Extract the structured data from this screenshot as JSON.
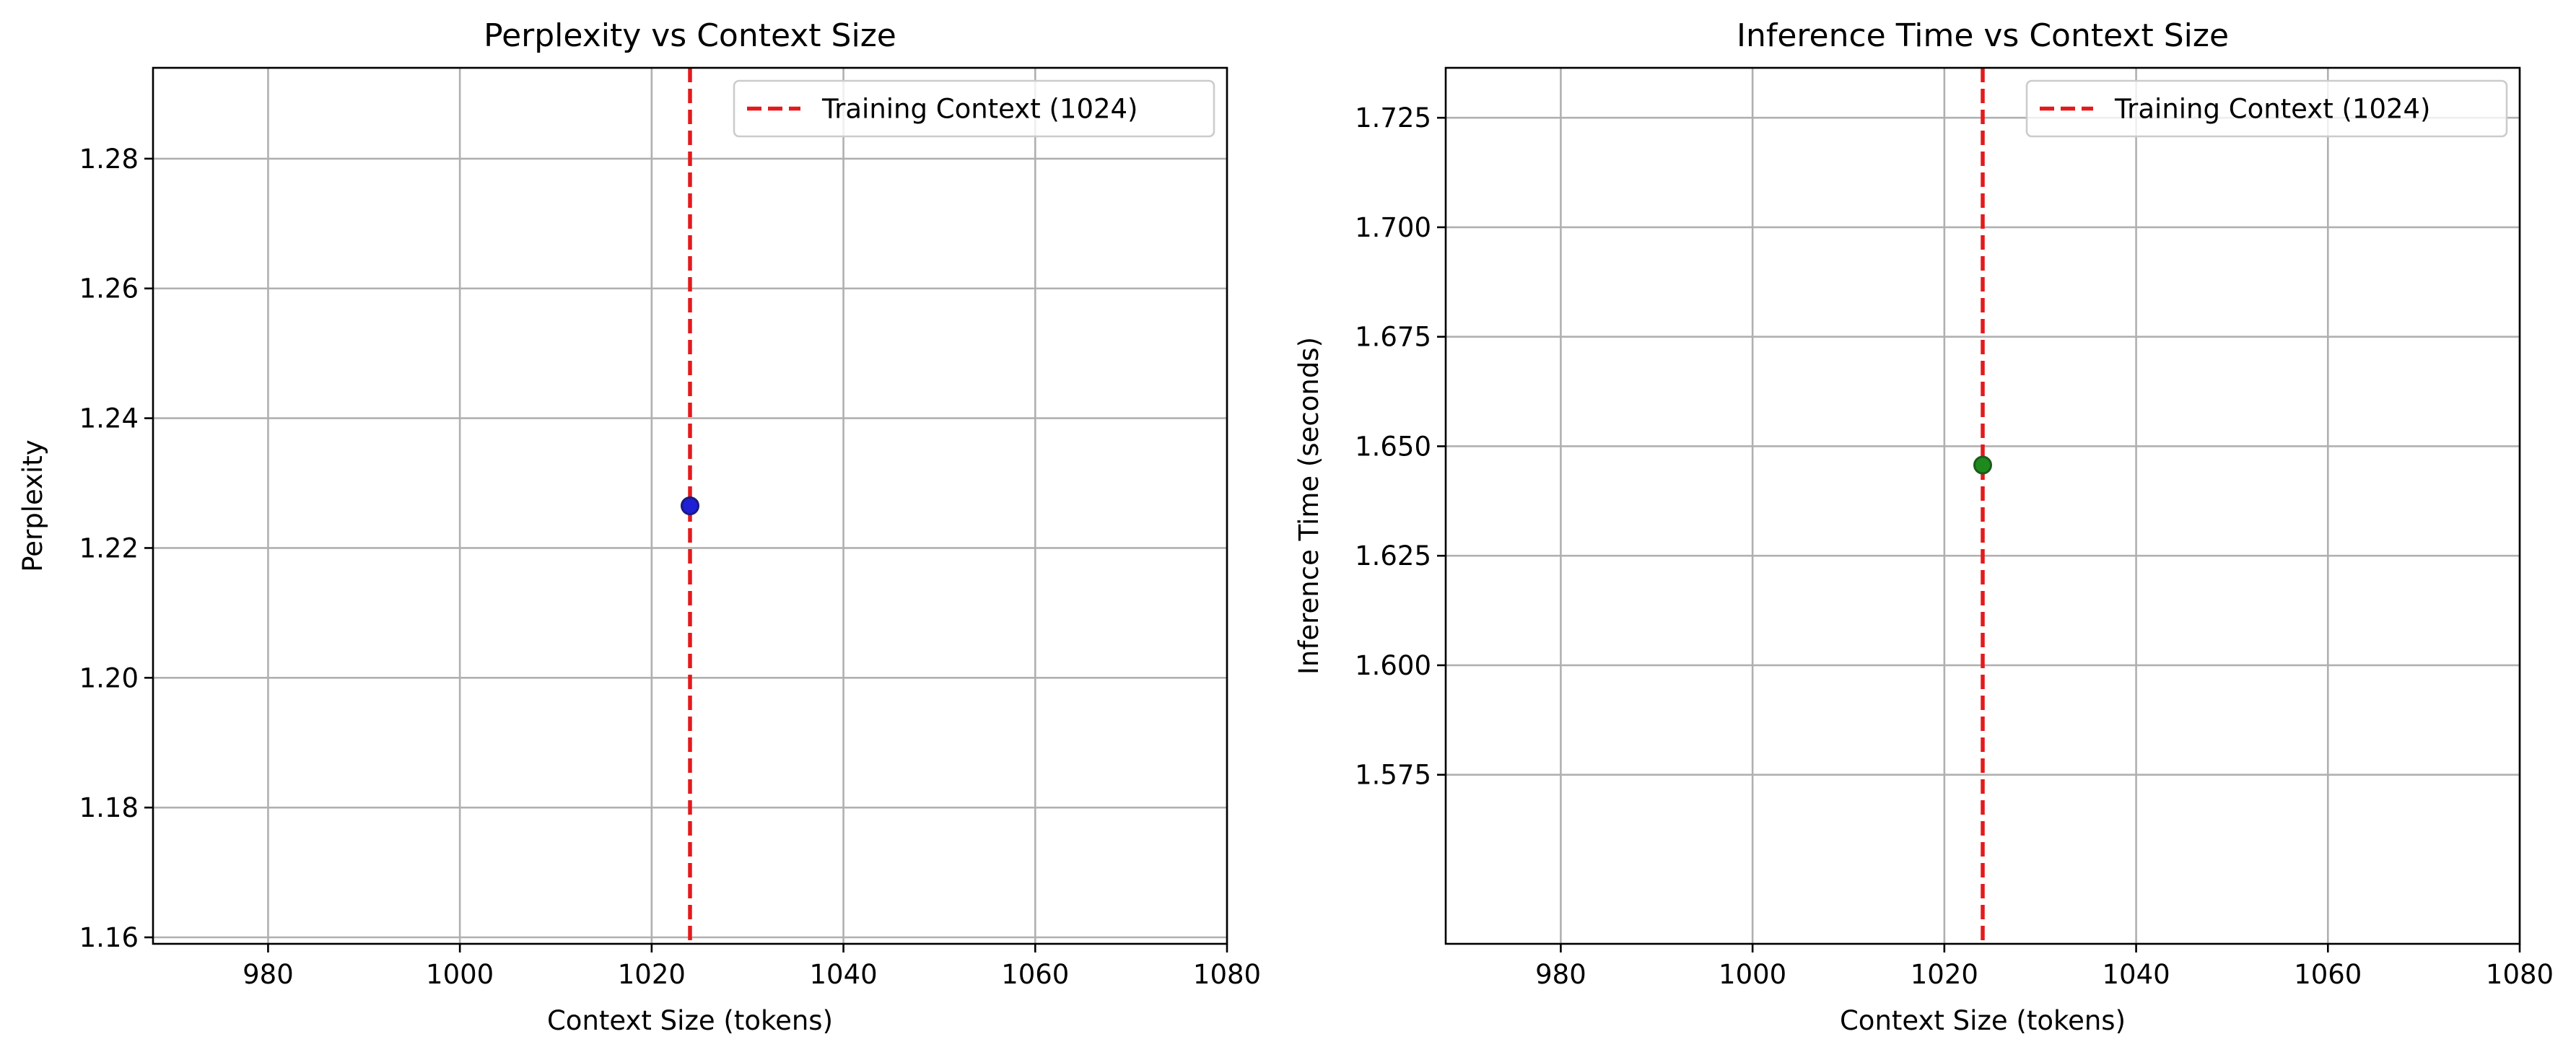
{
  "chart_data": [
    {
      "type": "scatter",
      "title": "Perplexity vs Context Size",
      "xlabel": "Context Size (tokens)",
      "ylabel": "Perplexity",
      "xlim": [
        968,
        1080
      ],
      "ylim": [
        1.159,
        1.294
      ],
      "xticks": [
        980,
        1000,
        1020,
        1040,
        1060,
        1080
      ],
      "xtick_labels": [
        "980",
        "1000",
        "1020",
        "1040",
        "1060",
        "1080"
      ],
      "yticks": [
        1.16,
        1.18,
        1.2,
        1.22,
        1.24,
        1.26,
        1.28
      ],
      "ytick_labels": [
        "1.16",
        "1.18",
        "1.20",
        "1.22",
        "1.24",
        "1.26",
        "1.28"
      ],
      "grid": true,
      "points": [
        {
          "x": 1024,
          "y": 1.2265
        }
      ],
      "point_color": "#1f1fd6",
      "point_edge": "#1a1a80",
      "vline": {
        "x": 1024,
        "label": "Training Context (1024)",
        "color": "#e31a1c",
        "style": "dashed"
      },
      "legend": {
        "position": "upper-right",
        "entries": [
          "Training Context (1024)"
        ]
      }
    },
    {
      "type": "scatter",
      "title": "Inference Time vs Context Size",
      "xlabel": "Context Size (tokens)",
      "ylabel": "Inference Time (seconds)",
      "xlim": [
        968,
        1080
      ],
      "ylim": [
        1.5364,
        1.7364
      ],
      "xticks": [
        980,
        1000,
        1020,
        1040,
        1060,
        1080
      ],
      "xtick_labels": [
        "980",
        "1000",
        "1020",
        "1040",
        "1060",
        "1080"
      ],
      "yticks": [
        1.575,
        1.6,
        1.625,
        1.65,
        1.675,
        1.7,
        1.725
      ],
      "ytick_labels": [
        "1.575",
        "1.600",
        "1.625",
        "1.650",
        "1.675",
        "1.700",
        "1.725"
      ],
      "grid": true,
      "points": [
        {
          "x": 1024,
          "y": 1.6457
        }
      ],
      "point_color": "#1e8a1e",
      "point_edge": "#1a5c1a",
      "vline": {
        "x": 1024,
        "label": "Training Context (1024)",
        "color": "#e31a1c",
        "style": "dashed"
      },
      "legend": {
        "position": "upper-right",
        "entries": [
          "Training Context (1024)"
        ]
      }
    }
  ]
}
